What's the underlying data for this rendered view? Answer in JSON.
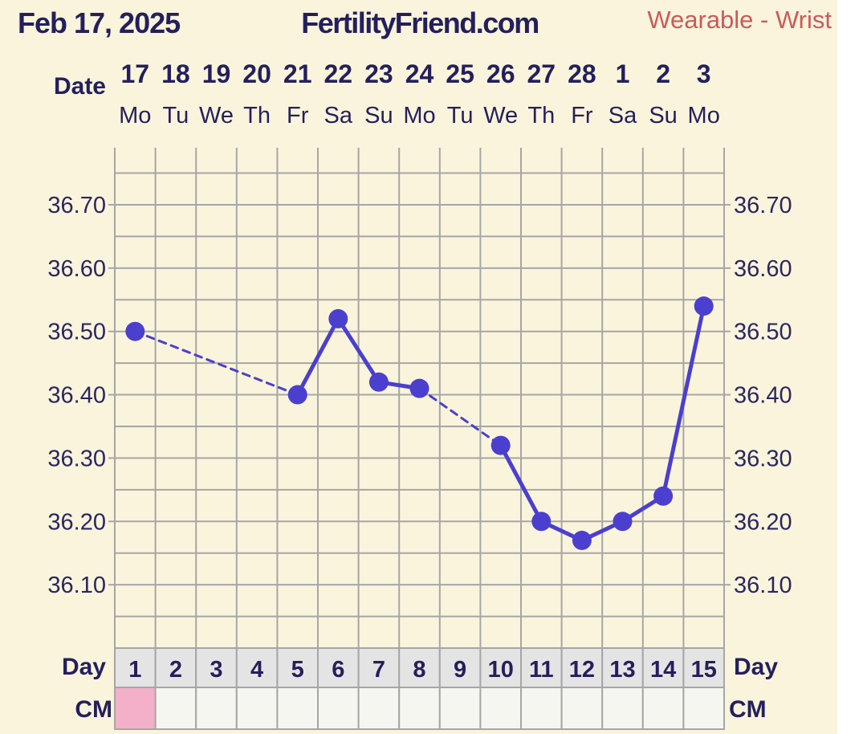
{
  "header": {
    "date": "Feb 17, 2025",
    "site": "FertilityFriend.com",
    "source": "Wearable - Wrist"
  },
  "labels": {
    "date_row": "Date",
    "day_row": "Day",
    "cm_row": "CM"
  },
  "colors": {
    "background": "#faf4dc",
    "line": "#4b3fcf",
    "grid": "#a6a6a6",
    "text": "#241f5c",
    "accent_red": "#cc5a5a",
    "cm_pink": "#f3b0c8"
  },
  "chart_data": {
    "type": "line",
    "ylim": [
      36.0,
      36.79
    ],
    "yticks": [
      "36.10",
      "36.20",
      "36.30",
      "36.40",
      "36.50",
      "36.60",
      "36.70"
    ],
    "ytick_values": [
      36.1,
      36.2,
      36.3,
      36.4,
      36.5,
      36.6,
      36.7
    ],
    "dates": [
      "17",
      "18",
      "19",
      "20",
      "21",
      "22",
      "23",
      "24",
      "25",
      "26",
      "27",
      "28",
      "1",
      "2",
      "3"
    ],
    "weekdays": [
      "Mo",
      "Tu",
      "We",
      "Th",
      "Fr",
      "Sa",
      "Su",
      "Mo",
      "Tu",
      "We",
      "Th",
      "Fr",
      "Sa",
      "Su",
      "Mo"
    ],
    "days": [
      "1",
      "2",
      "3",
      "4",
      "5",
      "6",
      "7",
      "8",
      "9",
      "10",
      "11",
      "12",
      "13",
      "14",
      "15"
    ],
    "temperatures": [
      36.5,
      null,
      null,
      null,
      36.4,
      36.52,
      36.42,
      36.41,
      null,
      36.32,
      36.2,
      36.17,
      36.2,
      36.24,
      36.54
    ],
    "cm_marked_days": [
      "1"
    ],
    "missing_data_connector": "dashed"
  }
}
